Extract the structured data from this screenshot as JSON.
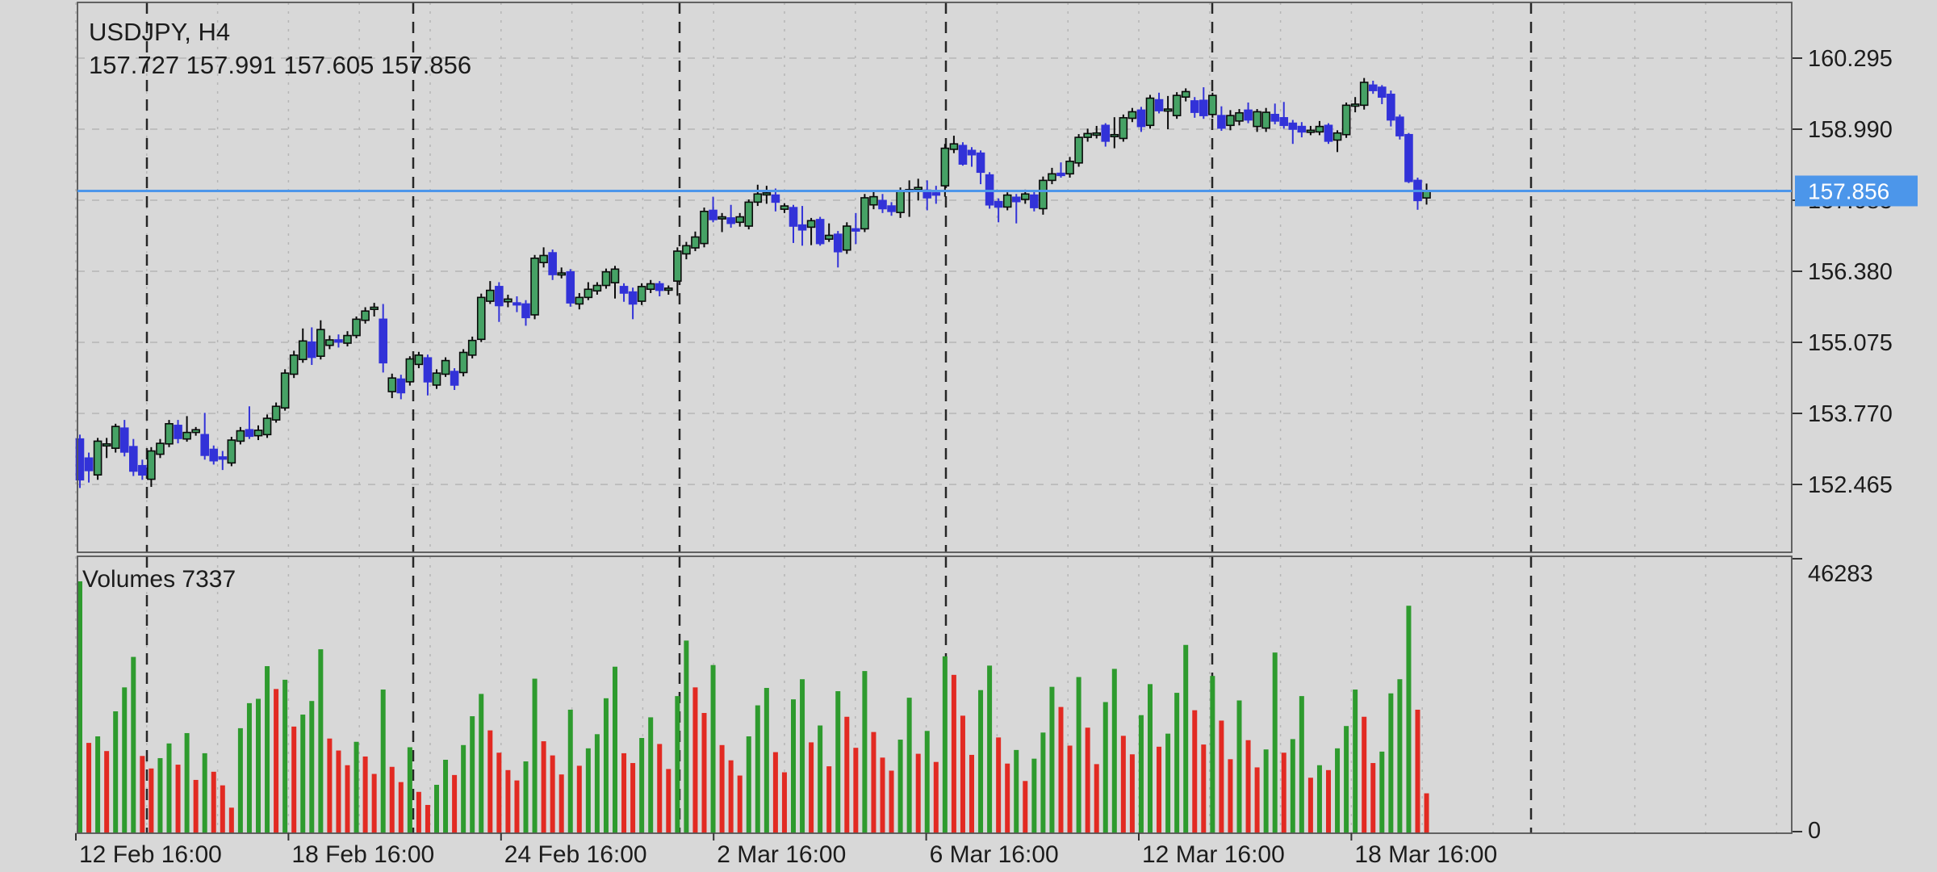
{
  "header": {
    "symbol": "USDJPY",
    "timeframe": "H4",
    "symbol_timeframe": "USDJPY, H4",
    "open": "157.727",
    "high": "157.991",
    "low": "157.605",
    "close": "157.856",
    "ohlc_line": "157.727 157.991 157.605 157.856"
  },
  "volume_indicator": {
    "name": "Volumes",
    "current_value": "7337",
    "line": "Volumes 7337"
  },
  "colors": {
    "background": "#D8D8D8",
    "bull_fill": "#46A265",
    "bull_stroke": "#0A0A0A",
    "bear": "#3232D8",
    "volume_up": "#2E9B2E",
    "volume_down": "#E22A22",
    "price_line": "#4C96EA",
    "badge_bg": "#4C96EA",
    "badge_text": "#FFFFFF",
    "grid_minor": "#B6B6B6",
    "grid_week": "#262626",
    "border": "#555555",
    "text": "#1C1C1C"
  },
  "chart_data": {
    "type": "candlestick",
    "title": "USDJPY, H4",
    "legend": [
      "price",
      "Volumes"
    ],
    "price_axis": {
      "ticks": [
        160.295,
        158.99,
        157.685,
        156.38,
        155.075,
        153.77,
        152.465
      ],
      "tick_labels": [
        "160.295",
        "158.990",
        "157.685",
        "156.380",
        "155.075",
        "153.770",
        "152.465"
      ],
      "current": 157.856,
      "current_label": "157.856",
      "range": [
        152.465,
        160.295
      ]
    },
    "volume_axis": {
      "max": 46283,
      "max_label": "46283",
      "min": 0,
      "min_label": "0"
    },
    "time_axis": {
      "labels": [
        "12 Feb 16:00",
        "18 Feb 16:00",
        "24 Feb 16:00",
        "2 Mar 16:00",
        "6 Mar 16:00",
        "12 Mar 16:00",
        "18 Mar 16:00"
      ]
    },
    "candles": [
      [
        153.3,
        153.38,
        152.4,
        152.55
      ],
      [
        152.95,
        153.05,
        152.5,
        152.72
      ],
      [
        152.64,
        153.32,
        152.55,
        153.26
      ],
      [
        153.18,
        153.32,
        152.95,
        153.21
      ],
      [
        153.13,
        153.58,
        153.05,
        153.53
      ],
      [
        153.5,
        153.65,
        152.98,
        153.06
      ],
      [
        153.16,
        153.3,
        152.62,
        152.71
      ],
      [
        152.81,
        152.92,
        152.55,
        152.64
      ],
      [
        152.56,
        153.15,
        152.42,
        153.08
      ],
      [
        153.02,
        153.3,
        152.95,
        153.22
      ],
      [
        153.21,
        153.65,
        153.15,
        153.58
      ],
      [
        153.55,
        153.65,
        153.22,
        153.31
      ],
      [
        153.3,
        153.72,
        153.25,
        153.42
      ],
      [
        153.42,
        153.52,
        153.36,
        153.47
      ],
      [
        153.38,
        153.78,
        152.92,
        153.0
      ],
      [
        153.11,
        153.18,
        152.83,
        152.9
      ],
      [
        152.97,
        153.08,
        152.73,
        152.93
      ],
      [
        152.86,
        153.34,
        152.8,
        153.28
      ],
      [
        153.26,
        153.52,
        153.2,
        153.45
      ],
      [
        153.47,
        153.9,
        153.3,
        153.35
      ],
      [
        153.36,
        153.55,
        153.28,
        153.46
      ],
      [
        153.38,
        153.75,
        153.32,
        153.68
      ],
      [
        153.65,
        153.97,
        153.6,
        153.9
      ],
      [
        153.87,
        154.58,
        153.82,
        154.51
      ],
      [
        154.49,
        154.92,
        154.42,
        154.84
      ],
      [
        154.76,
        155.33,
        154.7,
        155.1
      ],
      [
        155.08,
        155.35,
        154.66,
        154.8
      ],
      [
        154.82,
        155.48,
        154.76,
        155.31
      ],
      [
        155.02,
        155.2,
        154.95,
        155.12
      ],
      [
        155.12,
        155.22,
        154.98,
        155.08
      ],
      [
        155.06,
        155.28,
        155.0,
        155.2
      ],
      [
        155.2,
        155.55,
        155.15,
        155.5
      ],
      [
        155.48,
        155.72,
        155.42,
        155.65
      ],
      [
        155.68,
        155.8,
        155.55,
        155.72
      ],
      [
        155.5,
        155.78,
        154.52,
        154.7
      ],
      [
        154.17,
        154.5,
        154.05,
        154.42
      ],
      [
        154.4,
        154.48,
        154.03,
        154.15
      ],
      [
        154.35,
        154.82,
        154.28,
        154.77
      ],
      [
        154.67,
        154.9,
        154.6,
        154.84
      ],
      [
        154.79,
        154.85,
        154.1,
        154.35
      ],
      [
        154.29,
        154.58,
        154.22,
        154.51
      ],
      [
        154.49,
        154.8,
        154.44,
        154.74
      ],
      [
        154.54,
        154.6,
        154.2,
        154.29
      ],
      [
        154.52,
        154.95,
        154.45,
        154.89
      ],
      [
        154.84,
        155.18,
        154.78,
        155.11
      ],
      [
        155.13,
        155.97,
        155.08,
        155.9
      ],
      [
        155.83,
        156.2,
        155.78,
        156.03
      ],
      [
        156.1,
        156.18,
        155.45,
        155.75
      ],
      [
        155.82,
        155.95,
        155.72,
        155.87
      ],
      [
        155.8,
        155.92,
        155.63,
        155.78
      ],
      [
        155.78,
        155.85,
        155.38,
        155.53
      ],
      [
        155.58,
        156.68,
        155.5,
        156.62
      ],
      [
        156.54,
        156.82,
        156.45,
        156.67
      ],
      [
        156.72,
        156.78,
        156.22,
        156.32
      ],
      [
        156.32,
        156.45,
        156.25,
        156.35
      ],
      [
        156.37,
        156.42,
        155.73,
        155.8
      ],
      [
        155.78,
        155.98,
        155.68,
        155.9
      ],
      [
        155.9,
        156.18,
        155.85,
        156.05
      ],
      [
        156.02,
        156.18,
        155.95,
        156.12
      ],
      [
        156.12,
        156.43,
        156.06,
        156.37
      ],
      [
        156.17,
        156.48,
        155.88,
        156.42
      ],
      [
        156.1,
        156.16,
        155.82,
        155.98
      ],
      [
        156.0,
        156.08,
        155.5,
        155.78
      ],
      [
        155.83,
        156.16,
        155.76,
        156.1
      ],
      [
        156.05,
        156.22,
        155.98,
        156.15
      ],
      [
        156.15,
        156.2,
        155.92,
        156.03
      ],
      [
        156.05,
        156.12,
        155.95,
        156.07
      ],
      [
        156.2,
        156.82,
        155.93,
        156.75
      ],
      [
        156.7,
        156.92,
        156.6,
        156.85
      ],
      [
        156.81,
        157.11,
        156.75,
        157.01
      ],
      [
        156.89,
        157.55,
        156.82,
        157.48
      ],
      [
        157.5,
        157.75,
        157.28,
        157.33
      ],
      [
        157.36,
        157.45,
        157.1,
        157.38
      ],
      [
        157.36,
        157.6,
        157.18,
        157.26
      ],
      [
        157.28,
        157.45,
        157.2,
        157.38
      ],
      [
        157.21,
        157.7,
        157.15,
        157.65
      ],
      [
        157.65,
        157.97,
        157.58,
        157.8
      ],
      [
        157.8,
        157.95,
        157.62,
        157.82
      ],
      [
        157.78,
        157.9,
        157.48,
        157.65
      ],
      [
        157.52,
        157.63,
        157.45,
        157.58
      ],
      [
        157.55,
        157.6,
        156.9,
        157.21
      ],
      [
        157.23,
        157.58,
        156.85,
        157.14
      ],
      [
        157.19,
        157.36,
        156.86,
        157.31
      ],
      [
        157.33,
        157.38,
        156.85,
        156.89
      ],
      [
        156.97,
        157.26,
        156.92,
        157.04
      ],
      [
        157.06,
        157.12,
        156.45,
        156.74
      ],
      [
        156.77,
        157.28,
        156.7,
        157.21
      ],
      [
        157.16,
        157.45,
        156.88,
        157.12
      ],
      [
        157.16,
        157.8,
        157.1,
        157.73
      ],
      [
        157.6,
        157.85,
        157.52,
        157.75
      ],
      [
        157.68,
        157.8,
        157.45,
        157.53
      ],
      [
        157.58,
        157.65,
        157.4,
        157.48
      ],
      [
        157.46,
        157.92,
        157.36,
        157.85
      ],
      [
        157.86,
        158.05,
        157.38,
        157.88
      ],
      [
        157.88,
        158.08,
        157.68,
        157.92
      ],
      [
        157.87,
        158.05,
        157.5,
        157.73
      ],
      [
        157.82,
        157.95,
        157.62,
        157.78
      ],
      [
        157.95,
        158.72,
        157.75,
        158.64
      ],
      [
        158.62,
        158.87,
        158.55,
        158.72
      ],
      [
        158.69,
        158.75,
        158.32,
        158.35
      ],
      [
        158.6,
        158.66,
        158.3,
        158.52
      ],
      [
        158.55,
        158.6,
        157.98,
        158.2
      ],
      [
        158.15,
        158.2,
        157.53,
        157.6
      ],
      [
        157.66,
        157.72,
        157.28,
        157.56
      ],
      [
        157.56,
        157.83,
        157.5,
        157.78
      ],
      [
        157.74,
        157.8,
        157.26,
        157.66
      ],
      [
        157.7,
        157.88,
        157.62,
        157.8
      ],
      [
        157.78,
        157.84,
        157.48,
        157.55
      ],
      [
        157.53,
        158.12,
        157.42,
        158.05
      ],
      [
        158.05,
        158.28,
        157.98,
        158.17
      ],
      [
        158.18,
        158.38,
        158.1,
        158.14
      ],
      [
        158.17,
        158.48,
        158.1,
        158.4
      ],
      [
        158.37,
        158.9,
        158.3,
        158.84
      ],
      [
        158.84,
        159.0,
        158.76,
        158.91
      ],
      [
        158.88,
        159.05,
        158.82,
        158.92
      ],
      [
        159.06,
        159.1,
        158.67,
        158.77
      ],
      [
        158.87,
        159.21,
        158.64,
        158.89
      ],
      [
        158.82,
        159.26,
        158.76,
        159.2
      ],
      [
        159.19,
        159.38,
        159.12,
        159.31
      ],
      [
        159.34,
        159.4,
        158.94,
        159.04
      ],
      [
        159.06,
        159.62,
        159.0,
        159.56
      ],
      [
        159.53,
        159.66,
        159.28,
        159.33
      ],
      [
        159.34,
        159.6,
        158.99,
        159.36
      ],
      [
        159.24,
        159.67,
        159.18,
        159.61
      ],
      [
        159.58,
        159.74,
        159.5,
        159.68
      ],
      [
        159.51,
        159.58,
        159.2,
        159.3
      ],
      [
        159.52,
        159.76,
        159.18,
        159.24
      ],
      [
        159.26,
        159.66,
        159.2,
        159.61
      ],
      [
        159.24,
        159.41,
        158.96,
        159.01
      ],
      [
        159.06,
        159.34,
        158.97,
        159.24
      ],
      [
        159.14,
        159.36,
        159.06,
        159.29
      ],
      [
        159.34,
        159.48,
        159.1,
        159.16
      ],
      [
        159.04,
        159.36,
        158.94,
        159.31
      ],
      [
        159.01,
        159.38,
        158.94,
        159.3
      ],
      [
        159.26,
        159.46,
        159.08,
        159.14
      ],
      [
        159.2,
        159.49,
        159.0,
        159.06
      ],
      [
        159.1,
        159.16,
        158.72,
        158.99
      ],
      [
        159.04,
        159.12,
        158.84,
        158.94
      ],
      [
        158.96,
        159.05,
        158.88,
        158.97
      ],
      [
        158.94,
        159.14,
        158.88,
        159.04
      ],
      [
        159.06,
        159.1,
        158.72,
        158.77
      ],
      [
        158.79,
        158.97,
        158.57,
        158.92
      ],
      [
        158.89,
        159.48,
        158.83,
        159.43
      ],
      [
        159.44,
        159.58,
        159.3,
        159.45
      ],
      [
        159.43,
        159.93,
        159.35,
        159.85
      ],
      [
        159.8,
        159.88,
        159.64,
        159.7
      ],
      [
        159.76,
        159.8,
        159.45,
        159.58
      ],
      [
        159.63,
        159.7,
        159.04,
        159.16
      ],
      [
        159.21,
        159.26,
        158.8,
        158.87
      ],
      [
        158.89,
        158.92,
        158.0,
        158.03
      ],
      [
        158.05,
        158.1,
        157.51,
        157.68
      ],
      [
        157.727,
        157.991,
        157.605,
        157.856
      ]
    ],
    "volumes": [
      46283,
      16600,
      17800,
      15100,
      22400,
      26800,
      32400,
      14200,
      11900,
      13800,
      16500,
      12600,
      18400,
      9800,
      14700,
      11300,
      8800,
      4700,
      19300,
      23900,
      24700,
      30700,
      26500,
      28200,
      19600,
      21800,
      24300,
      33800,
      17400,
      15200,
      12500,
      16800,
      14100,
      10900,
      26400,
      12200,
      9400,
      15800,
      7600,
      5200,
      8900,
      13500,
      10700,
      16200,
      21500,
      25600,
      18900,
      14800,
      11600,
      9700,
      13200,
      28400,
      16900,
      14300,
      10800,
      22700,
      12400,
      15600,
      18200,
      24800,
      30600,
      14700,
      12900,
      17500,
      21300,
      16400,
      11800,
      25200,
      35400,
      26800,
      22100,
      30900,
      16200,
      13400,
      10600,
      17800,
      23500,
      26700,
      14900,
      11200,
      24600,
      28300,
      16700,
      19800,
      12300,
      26100,
      21400,
      15700,
      29800,
      18600,
      13900,
      11500,
      17200,
      24900,
      14600,
      18800,
      13100,
      32500,
      29100,
      21600,
      14400,
      26300,
      30800,
      17600,
      12800,
      15300,
      9600,
      13700,
      18500,
      26900,
      23200,
      16100,
      28700,
      19400,
      12700,
      24100,
      30200,
      17900,
      14500,
      21700,
      27400,
      15900,
      18300,
      25800,
      34600,
      22600,
      16300,
      28900,
      20700,
      13600,
      24400,
      17100,
      12100,
      15400,
      33200,
      14800,
      17300,
      25200,
      10200,
      12500,
      11600,
      15600,
      19700,
      26400,
      21400,
      12900,
      15000,
      25700,
      28300,
      41800,
      22700,
      7337
    ]
  }
}
